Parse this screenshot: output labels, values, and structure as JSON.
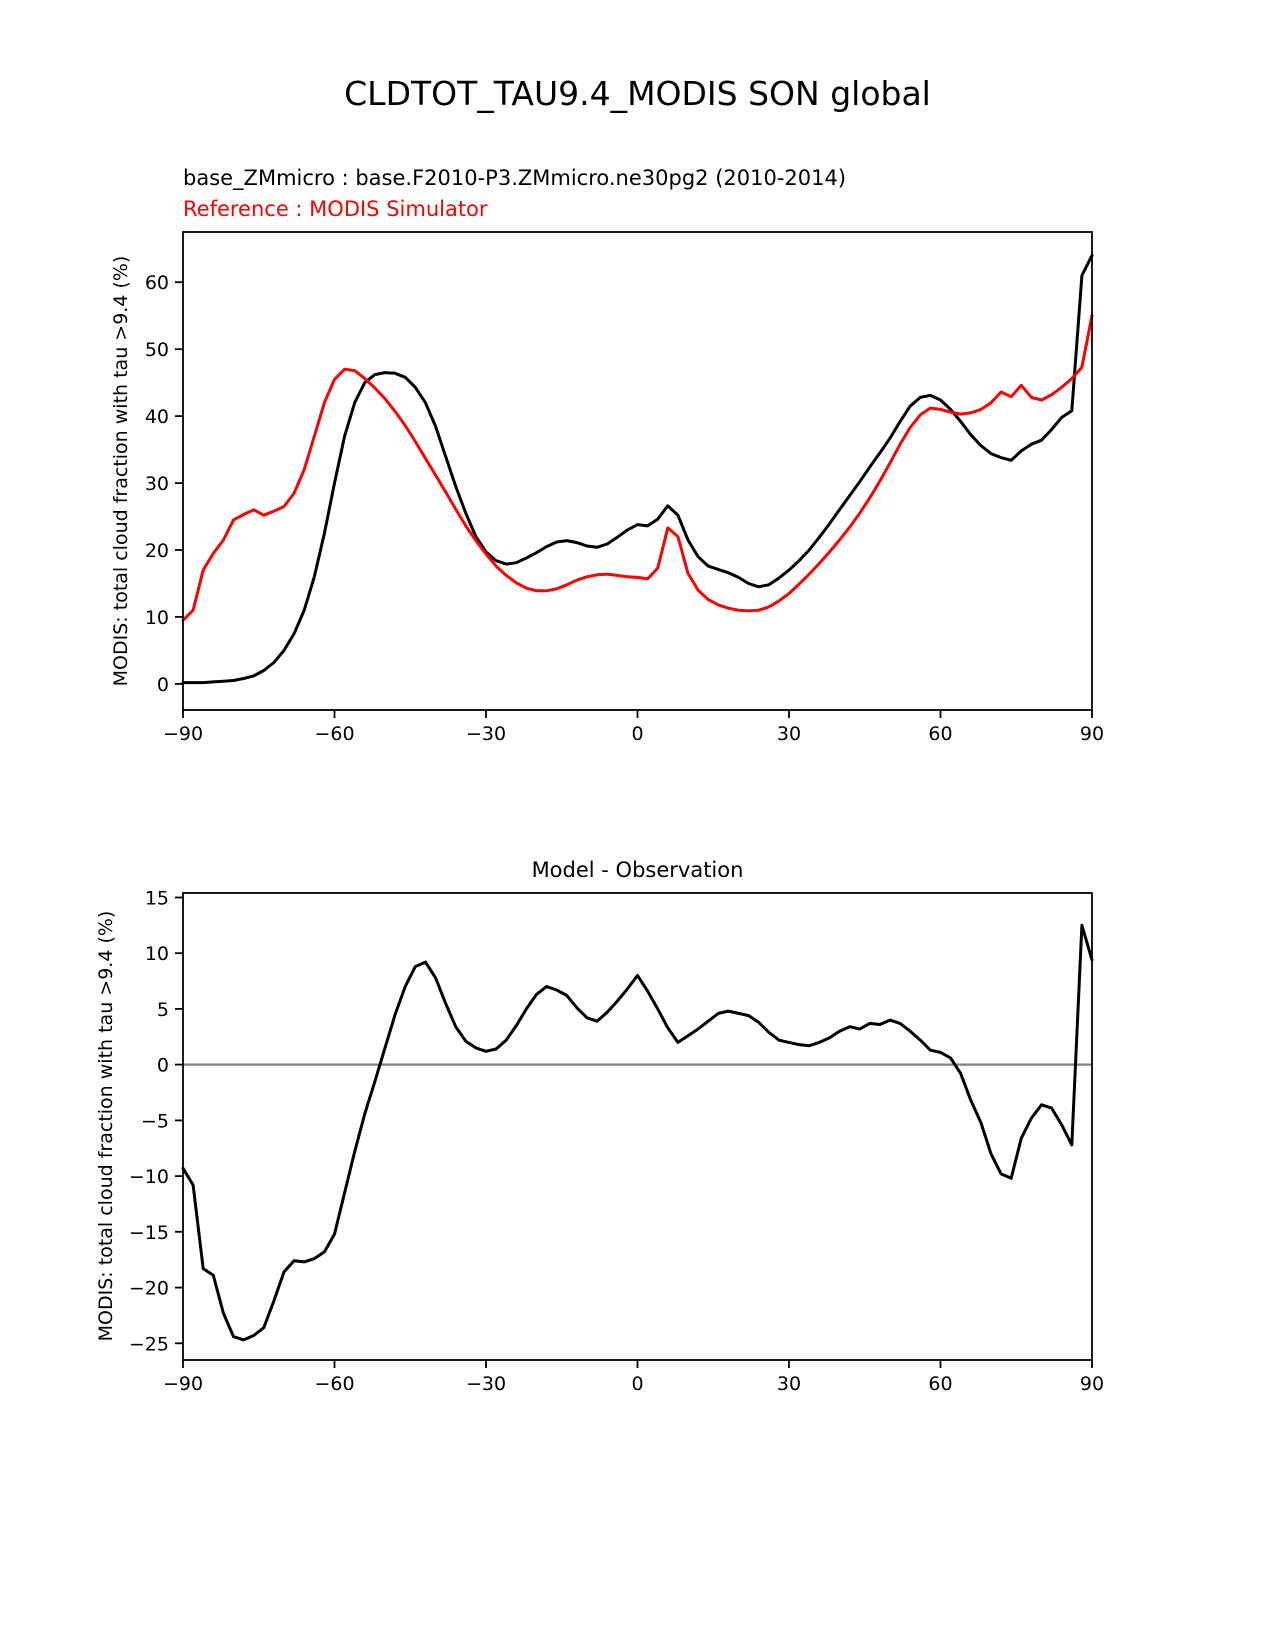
{
  "page": {
    "title": "CLDTOT_TAU9.4_MODIS SON global"
  },
  "legend": {
    "model_label": "base_ZMmicro : base.F2010-P3.ZMmicro.ne30pg2 (2010-2014)",
    "model_color": "#000000",
    "reference_label": "Reference : MODIS Simulator",
    "reference_color": "#ff0000"
  },
  "chart_data": [
    {
      "type": "line",
      "title": "",
      "xlabel": "",
      "ylabel": "MODIS: total cloud fraction with tau >9.4 (%)",
      "xlim": [
        -90,
        90
      ],
      "ylim": [
        -3.9,
        67.5
      ],
      "xticks": [
        -90,
        -60,
        -30,
        0,
        30,
        60,
        90
      ],
      "yticks": [
        0,
        10,
        20,
        30,
        40,
        50,
        60
      ],
      "grid": false,
      "zero_line": false,
      "x": [
        -90,
        -88,
        -86,
        -84,
        -82,
        -80,
        -78,
        -76,
        -74,
        -72,
        -70,
        -68,
        -66,
        -64,
        -62,
        -60,
        -58,
        -56,
        -54,
        -52,
        -50,
        -48,
        -46,
        -44,
        -42,
        -40,
        -38,
        -36,
        -34,
        -32,
        -30,
        -28,
        -26,
        -24,
        -22,
        -20,
        -18,
        -16,
        -14,
        -12,
        -10,
        -8,
        -6,
        -4,
        -2,
        0,
        2,
        4,
        6,
        8,
        10,
        12,
        14,
        16,
        18,
        20,
        22,
        24,
        26,
        28,
        30,
        32,
        34,
        36,
        38,
        40,
        42,
        44,
        46,
        48,
        50,
        52,
        54,
        56,
        58,
        60,
        62,
        64,
        66,
        68,
        70,
        72,
        74,
        76,
        78,
        80,
        82,
        84,
        86,
        88,
        90
      ],
      "series": [
        {
          "name": "base_ZMmicro : base.F2010-P3.ZMmicro.ne30pg2 (2010-2014)",
          "color": "#000000",
          "values": [
            0.2,
            0.2,
            0.2,
            0.3,
            0.4,
            0.5,
            0.8,
            1.2,
            2.0,
            3.2,
            5.0,
            7.5,
            11.0,
            16.0,
            22.5,
            30.0,
            37.0,
            42.0,
            45.0,
            46.2,
            46.5,
            46.4,
            45.8,
            44.3,
            42.0,
            38.5,
            34.0,
            29.5,
            25.5,
            22.0,
            19.7,
            18.4,
            17.9,
            18.1,
            18.8,
            19.6,
            20.5,
            21.2,
            21.4,
            21.1,
            20.6,
            20.4,
            20.9,
            21.9,
            23.0,
            23.8,
            23.6,
            24.6,
            26.6,
            25.2,
            21.5,
            19.0,
            17.6,
            17.1,
            16.6,
            15.9,
            15.0,
            14.5,
            14.8,
            15.8,
            17.0,
            18.4,
            20.0,
            21.9,
            23.9,
            26.0,
            28.1,
            30.2,
            32.4,
            34.5,
            36.7,
            39.2,
            41.5,
            42.8,
            43.1,
            42.4,
            41.0,
            39.2,
            37.2,
            35.6,
            34.4,
            33.8,
            33.4,
            34.8,
            35.8,
            36.4,
            38.0,
            39.8,
            40.8,
            61.0,
            64.0
          ]
        },
        {
          "name": "Reference : MODIS Simulator",
          "color": "#ff0000",
          "values": [
            9.5,
            11.0,
            17.0,
            19.5,
            21.5,
            24.5,
            25.3,
            26.0,
            25.2,
            25.8,
            26.5,
            28.5,
            32.0,
            37.0,
            42.0,
            45.5,
            47.0,
            46.8,
            45.6,
            44.2,
            42.6,
            40.7,
            38.6,
            36.2,
            33.7,
            31.2,
            28.7,
            26.1,
            23.6,
            21.4,
            19.4,
            17.6,
            16.2,
            15.1,
            14.3,
            13.9,
            13.9,
            14.2,
            14.8,
            15.5,
            16.0,
            16.3,
            16.4,
            16.2,
            16.0,
            15.9,
            15.7,
            17.3,
            23.3,
            22.0,
            16.5,
            14.0,
            12.6,
            11.8,
            11.3,
            11.0,
            10.9,
            11.0,
            11.5,
            12.4,
            13.5,
            14.9,
            16.4,
            18.0,
            19.7,
            21.5,
            23.4,
            25.5,
            27.8,
            30.3,
            33.0,
            35.8,
            38.3,
            40.2,
            41.2,
            41.0,
            40.6,
            40.3,
            40.5,
            41.0,
            42.0,
            43.6,
            42.9,
            44.6,
            42.8,
            42.4,
            43.2,
            44.3,
            45.6,
            47.3,
            55.0
          ]
        }
      ]
    },
    {
      "type": "line",
      "title": "Model - Observation",
      "xlabel": "",
      "ylabel": "MODIS: total cloud fraction with tau >9.4 (%)",
      "xlim": [
        -90,
        90
      ],
      "ylim": [
        -26.5,
        15.4
      ],
      "xticks": [
        -90,
        -60,
        -30,
        0,
        30,
        60,
        90
      ],
      "yticks": [
        -25,
        -20,
        -15,
        -10,
        -5,
        0,
        5,
        10,
        15
      ],
      "grid": false,
      "zero_line": true,
      "zero_line_color": "#808080",
      "x": [
        -90,
        -88,
        -86,
        -84,
        -82,
        -80,
        -78,
        -76,
        -74,
        -72,
        -70,
        -68,
        -66,
        -64,
        -62,
        -60,
        -58,
        -56,
        -54,
        -52,
        -50,
        -48,
        -46,
        -44,
        -42,
        -40,
        -38,
        -36,
        -34,
        -32,
        -30,
        -28,
        -26,
        -24,
        -22,
        -20,
        -18,
        -16,
        -14,
        -12,
        -10,
        -8,
        -6,
        -4,
        -2,
        0,
        2,
        4,
        6,
        8,
        10,
        12,
        14,
        16,
        18,
        20,
        22,
        24,
        26,
        28,
        30,
        32,
        34,
        36,
        38,
        40,
        42,
        44,
        46,
        48,
        50,
        52,
        54,
        56,
        58,
        60,
        62,
        64,
        66,
        68,
        70,
        72,
        74,
        76,
        78,
        80,
        82,
        84,
        86,
        88,
        90
      ],
      "series": [
        {
          "name": "Model - Observation",
          "color": "#000000",
          "values": [
            -9.3,
            -10.8,
            -18.3,
            -18.9,
            -22.3,
            -24.4,
            -24.7,
            -24.3,
            -23.6,
            -21.2,
            -18.6,
            -17.6,
            -17.7,
            -17.4,
            -16.8,
            -15.2,
            -11.5,
            -7.8,
            -4.4,
            -1.5,
            1.5,
            4.5,
            7.0,
            8.8,
            9.2,
            7.8,
            5.5,
            3.4,
            2.1,
            1.5,
            1.2,
            1.4,
            2.2,
            3.5,
            5.0,
            6.3,
            7.0,
            6.7,
            6.2,
            5.1,
            4.2,
            3.9,
            4.7,
            5.7,
            6.8,
            8.0,
            6.6,
            5.0,
            3.3,
            2.0,
            2.6,
            3.2,
            3.9,
            4.6,
            4.8,
            4.6,
            4.4,
            3.8,
            2.9,
            2.2,
            2.0,
            1.8,
            1.7,
            2.0,
            2.4,
            3.0,
            3.4,
            3.2,
            3.7,
            3.6,
            4.0,
            3.7,
            3.0,
            2.2,
            1.3,
            1.1,
            0.6,
            -0.8,
            -3.2,
            -5.2,
            -8.0,
            -9.8,
            -10.2,
            -6.6,
            -4.8,
            -3.6,
            -3.9,
            -5.4,
            -7.2,
            12.5,
            9.4
          ]
        }
      ]
    }
  ]
}
